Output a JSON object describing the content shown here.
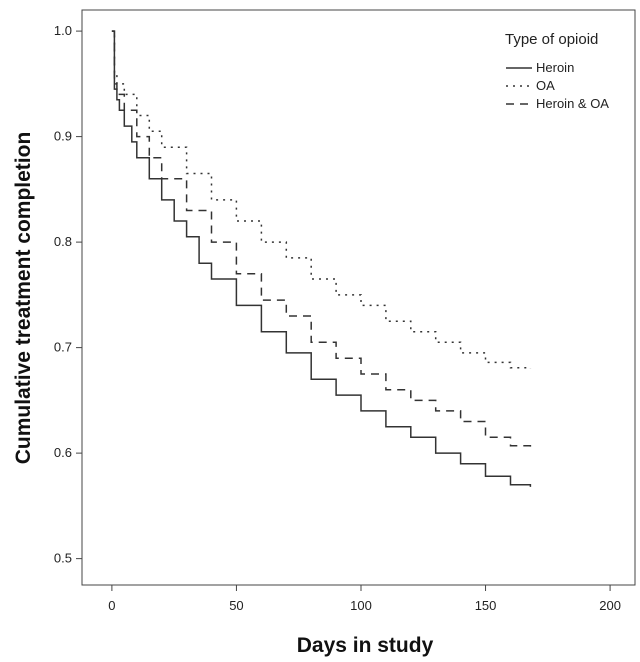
{
  "chart_data": {
    "type": "line",
    "xlabel": "Days in study",
    "ylabel": "Cumulative treatment completion",
    "xlim": [
      -12,
      210
    ],
    "ylim": [
      0.475,
      1.02
    ],
    "xticks": [
      0,
      50,
      100,
      150,
      200
    ],
    "yticks": [
      0.5,
      0.6,
      0.7,
      0.8,
      0.9,
      1.0
    ],
    "ytick_labels": [
      "0.5",
      "0.6",
      "0.7",
      "0.8",
      "0.9",
      "1.0"
    ],
    "grid": false,
    "legend": {
      "title": "Type of opioid",
      "placement": "top-right"
    },
    "series": [
      {
        "name": "Heroin",
        "style": "solid",
        "color": "#333333",
        "x": [
          0,
          1,
          2,
          3,
          5,
          8,
          10,
          15,
          20,
          25,
          30,
          35,
          40,
          50,
          60,
          70,
          80,
          90,
          100,
          110,
          120,
          130,
          140,
          150,
          160,
          168
        ],
        "y": [
          1.0,
          0.945,
          0.935,
          0.925,
          0.91,
          0.895,
          0.88,
          0.86,
          0.84,
          0.82,
          0.805,
          0.78,
          0.765,
          0.74,
          0.715,
          0.695,
          0.67,
          0.655,
          0.64,
          0.625,
          0.615,
          0.6,
          0.59,
          0.578,
          0.57,
          0.568
        ]
      },
      {
        "name": "OA",
        "style": "dotted",
        "color": "#333333",
        "x": [
          0,
          1,
          2,
          5,
          10,
          15,
          20,
          30,
          40,
          50,
          60,
          70,
          80,
          90,
          100,
          110,
          120,
          130,
          140,
          150,
          160,
          168
        ],
        "y": [
          1.0,
          0.96,
          0.95,
          0.94,
          0.92,
          0.905,
          0.89,
          0.865,
          0.84,
          0.82,
          0.8,
          0.785,
          0.765,
          0.75,
          0.74,
          0.725,
          0.715,
          0.705,
          0.695,
          0.686,
          0.681,
          0.68
        ]
      },
      {
        "name": "Heroin & OA",
        "style": "dashed",
        "color": "#333333",
        "x": [
          0,
          1,
          2,
          5,
          10,
          15,
          20,
          30,
          40,
          50,
          60,
          70,
          80,
          90,
          100,
          110,
          120,
          130,
          140,
          150,
          160,
          168
        ],
        "y": [
          1.0,
          0.95,
          0.94,
          0.925,
          0.9,
          0.88,
          0.86,
          0.83,
          0.8,
          0.77,
          0.745,
          0.73,
          0.705,
          0.69,
          0.675,
          0.66,
          0.65,
          0.64,
          0.63,
          0.615,
          0.607,
          0.605
        ]
      }
    ]
  }
}
